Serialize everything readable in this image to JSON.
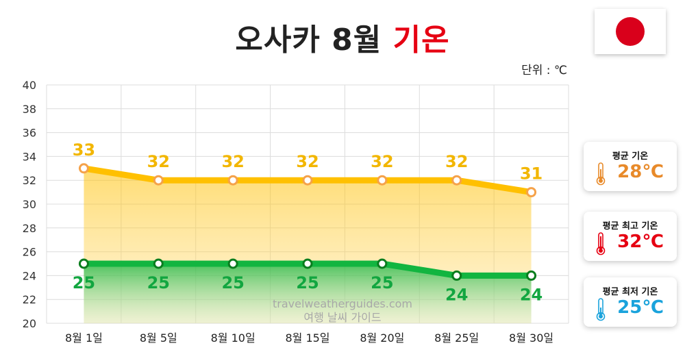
{
  "header": {
    "title_main": "오사카 8월",
    "title_accent": "기온",
    "unit_label": "단위 : ℃"
  },
  "flag": {
    "icon": "japan-flag-icon"
  },
  "watermark": {
    "line1": "travelweatherguides.com",
    "line2": "여행 날씨 가이드"
  },
  "cards": {
    "avg": {
      "label": "평균 기온",
      "value": "28℃",
      "color": "#e88a2a",
      "icon": "thermometer-icon"
    },
    "high": {
      "label": "평균 최고 기온",
      "value": "32℃",
      "color": "#e60012",
      "icon": "thermometer-icon"
    },
    "low": {
      "label": "평균 최저 기온",
      "value": "25℃",
      "color": "#1aa3dc",
      "icon": "thermometer-icon"
    }
  },
  "chart_data": {
    "type": "line",
    "x": [
      "8월 1일",
      "8월 5일",
      "8월 10일",
      "8월 15일",
      "8월 20일",
      "8월 25일",
      "8월 30일"
    ],
    "series": [
      {
        "values": [
          33,
          32,
          32,
          32,
          32,
          32,
          31
        ],
        "color": "#ffc000",
        "label_color": "#f2b600",
        "fill": "area"
      },
      {
        "values": [
          25,
          25,
          25,
          25,
          25,
          24,
          24
        ],
        "color": "#12b540",
        "label_color": "#12a640",
        "fill": "area"
      }
    ],
    "yticks": [
      20,
      22,
      24,
      26,
      28,
      30,
      32,
      34,
      36,
      38,
      40
    ],
    "ylim": [
      20,
      40
    ],
    "grid": true,
    "data_labels": true
  }
}
